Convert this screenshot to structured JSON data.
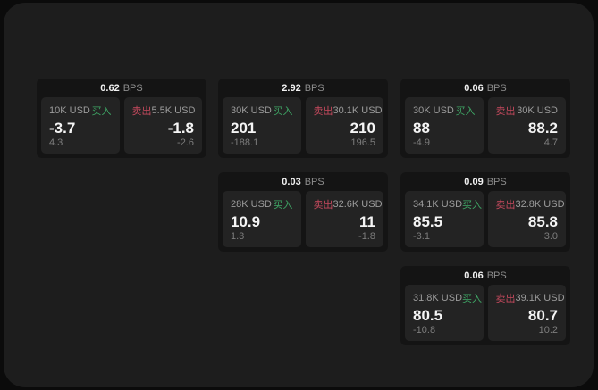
{
  "labels": {
    "bps_unit": "BPS",
    "buy": "买入",
    "sell": "卖出"
  },
  "colors": {
    "screen_bg": "#1d1d1d",
    "outside_bg": "#0b0b0b",
    "card_bg": "#141414",
    "panel_bg": "#232323",
    "text_primary": "#f5f5f5",
    "text_secondary": "#9c9c9c",
    "text_dim": "#7d7d7d",
    "buy_green": "#3fa766",
    "sell_red": "#c74a5e"
  },
  "cards": [
    {
      "bps": "0.62",
      "buy": {
        "amount": "10K USD",
        "price": "-3.7",
        "delta": "4.3"
      },
      "sell": {
        "amount": "5.5K USD",
        "price": "-1.8",
        "delta": "-2.6"
      }
    },
    {
      "bps": "2.92",
      "buy": {
        "amount": "30K USD",
        "price": "201",
        "delta": "-188.1"
      },
      "sell": {
        "amount": "30.1K USD",
        "price": "210",
        "delta": "196.5"
      }
    },
    {
      "bps": "0.06",
      "buy": {
        "amount": "30K USD",
        "price": "88",
        "delta": "-4.9"
      },
      "sell": {
        "amount": "30K USD",
        "price": "88.2",
        "delta": "4.7"
      }
    },
    {
      "bps": "0.03",
      "buy": {
        "amount": "28K USD",
        "price": "10.9",
        "delta": "1.3"
      },
      "sell": {
        "amount": "32.6K USD",
        "price": "11",
        "delta": "-1.8"
      }
    },
    {
      "bps": "0.09",
      "buy": {
        "amount": "34.1K USD",
        "price": "85.5",
        "delta": "-3.1"
      },
      "sell": {
        "amount": "32.8K USD",
        "price": "85.8",
        "delta": "3.0"
      }
    },
    {
      "bps": "0.06",
      "buy": {
        "amount": "31.8K USD",
        "price": "80.5",
        "delta": "-10.8"
      },
      "sell": {
        "amount": "39.1K USD",
        "price": "80.7",
        "delta": "10.2"
      }
    }
  ]
}
